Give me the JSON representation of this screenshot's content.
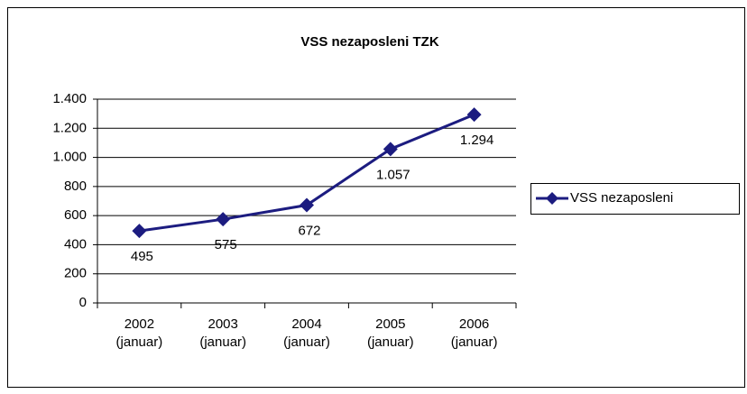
{
  "chart_data": {
    "type": "line",
    "title": "VSS nezaposleni TZK",
    "categories": [
      "2002 (januar)",
      "2003 (januar)",
      "2004 (januar)",
      "2005 (januar)",
      "2006 (januar)"
    ],
    "series": [
      {
        "name": "VSS nezaposleni",
        "color": "#1c1c80",
        "values": [
          495,
          575,
          672,
          1057,
          1294
        ],
        "value_labels": [
          "495",
          "575",
          "672",
          "1.057",
          "1.294"
        ]
      }
    ],
    "ylim": [
      0,
      1400
    ],
    "yticks": [
      0,
      200,
      400,
      600,
      800,
      {
        "value": 1000,
        "label": "1.000"
      },
      {
        "value": 1200,
        "label": "1.200"
      },
      {
        "value": 1400,
        "label": "1.400"
      }
    ],
    "grid": true,
    "legend": "right"
  }
}
